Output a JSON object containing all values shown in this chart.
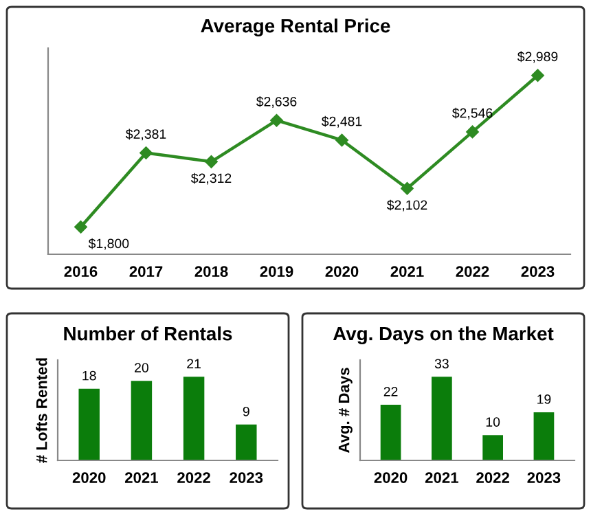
{
  "chart_data": [
    {
      "type": "line",
      "title": "Average Rental Price",
      "categories": [
        "2016",
        "2017",
        "2018",
        "2019",
        "2020",
        "2021",
        "2022",
        "2023"
      ],
      "values": [
        1800,
        2381,
        2312,
        2636,
        2481,
        2102,
        2546,
        2989
      ],
      "value_labels": [
        "$1,800",
        "$2,381",
        "$2,312",
        "$2,636",
        "$2,481",
        "$2,102",
        "$2,546",
        "$2,989"
      ],
      "color": "#2e8b22",
      "marker": "diamond",
      "line_style": "solid",
      "grid": false,
      "legend": false,
      "tick_labels": "x"
    },
    {
      "type": "bar",
      "title": "Number of Rentals",
      "ylabel": "# Lofts Rented",
      "categories": [
        "2020",
        "2021",
        "2022",
        "2023"
      ],
      "values": [
        18,
        20,
        21,
        9
      ],
      "color": "#0b7d0b",
      "data_labels": true,
      "grid": false,
      "legend": false,
      "tick_labels": "x"
    },
    {
      "type": "bar",
      "title": "Avg. Days on the Market",
      "ylabel": "Avg. # Days",
      "categories": [
        "2020",
        "2021",
        "2022",
        "2023"
      ],
      "values": [
        22,
        33,
        10,
        19
      ],
      "color": "#0b7d0b",
      "data_labels": true,
      "grid": false,
      "legend": false,
      "tick_labels": "x"
    }
  ]
}
